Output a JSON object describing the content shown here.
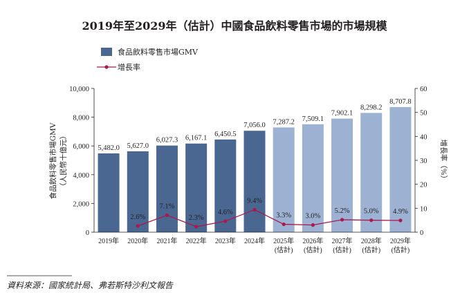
{
  "chart_data": {
    "type": "bar",
    "title": "2019年至2029年（估計）中國食品飲料零售市場的市場規模",
    "categories": [
      [
        "2019年"
      ],
      [
        "2020年"
      ],
      [
        "2021年"
      ],
      [
        "2022年"
      ],
      [
        "2023年"
      ],
      [
        "2024年"
      ],
      [
        "2025年",
        "(估計)"
      ],
      [
        "2026年",
        "(估計)"
      ],
      [
        "2027年",
        "(估計)"
      ],
      [
        "2028年",
        "(估計)"
      ],
      [
        "2029年",
        "(估計)"
      ]
    ],
    "series": [
      {
        "name": "食品飲料零售市場GMV",
        "type": "bar",
        "axis": "left",
        "values": [
          5482.0,
          5627.0,
          6027.3,
          6167.1,
          6450.5,
          7056.0,
          7287.2,
          7509.1,
          7902.1,
          8298.2,
          8707.8
        ],
        "labels": [
          "5,482.0",
          "5,627.0",
          "6,027.3",
          "6,167.1",
          "6,450.5",
          "7,056.0",
          "7,287.2",
          "7,509.1",
          "7,902.1",
          "8,298.2",
          "8,707.8"
        ],
        "estimated_from_index": 6
      },
      {
        "name": "增長率",
        "type": "line",
        "axis": "right",
        "values": [
          null,
          2.6,
          7.1,
          2.3,
          4.6,
          9.4,
          3.3,
          3.0,
          5.2,
          5.0,
          4.9
        ],
        "labels": [
          null,
          "2.6%",
          "7.1%",
          "2.3%",
          "4.6%",
          "9.4%",
          "3.3%",
          "3.0%",
          "5.2%",
          "5.0%",
          "4.9%"
        ]
      }
    ],
    "ylabel": "食品飲料零售市場GMV",
    "ylabel_unit": "（人民幣十億元）",
    "ylim": [
      0,
      10000
    ],
    "yticks": [
      "0",
      "2,000",
      "4,000",
      "6,000",
      "8,000",
      "10,000"
    ],
    "y2label": "增長率（%）",
    "y2lim": [
      0,
      60
    ],
    "y2ticks": [
      "0",
      "10",
      "20",
      "30",
      "40",
      "50",
      "60"
    ],
    "legend_position": "top-left",
    "grid": false,
    "colors": {
      "actual_bar": "#4a6791",
      "estimated_bar": "#9db2d2",
      "growth_line": "#a8194e"
    }
  },
  "source": "資料來源：國家統計局、弗若斯特沙利文報告"
}
